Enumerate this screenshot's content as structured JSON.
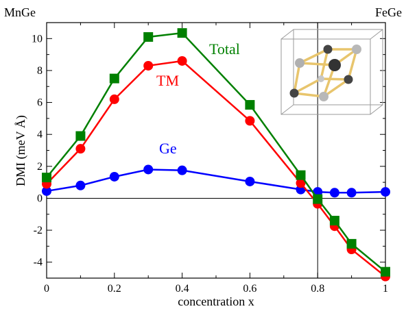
{
  "chart_data": {
    "type": "line",
    "xlabel": "concentration x",
    "ylabel": "DMI (meV Å)",
    "xlim": [
      0,
      1
    ],
    "ylim": [
      -5,
      11
    ],
    "x_ticks": [
      "0",
      "0.2",
      "0.4",
      "0.6",
      "0.8",
      "1"
    ],
    "y_ticks": [
      "-4",
      "-2",
      "0",
      "2",
      "4",
      "6",
      "8",
      "10"
    ],
    "top_left_label": "MnGe",
    "top_right_label": "FeGe",
    "x_marker_line": 0.8,
    "series": [
      {
        "name": "Total",
        "color": "#008000",
        "marker": "square",
        "x": [
          0,
          0.1,
          0.2,
          0.3,
          0.4,
          0.6,
          0.75,
          0.8,
          0.85,
          0.9,
          1.0
        ],
        "values": [
          1.3,
          3.9,
          7.5,
          10.1,
          10.35,
          5.85,
          1.45,
          -0.05,
          -1.4,
          -2.85,
          -4.6
        ]
      },
      {
        "name": "TM",
        "color": "#ff0000",
        "marker": "circle",
        "x": [
          0,
          0.1,
          0.2,
          0.3,
          0.4,
          0.6,
          0.75,
          0.8,
          0.85,
          0.9,
          1.0
        ],
        "values": [
          0.9,
          3.1,
          6.2,
          8.3,
          8.6,
          4.85,
          0.95,
          -0.35,
          -1.75,
          -3.2,
          -4.9
        ]
      },
      {
        "name": "Ge",
        "color": "#0000ff",
        "marker": "circle",
        "x": [
          0,
          0.1,
          0.2,
          0.3,
          0.4,
          0.6,
          0.75,
          0.8,
          0.85,
          0.9,
          1.0
        ],
        "values": [
          0.45,
          0.8,
          1.35,
          1.8,
          1.75,
          1.05,
          0.55,
          0.4,
          0.35,
          0.35,
          0.4
        ]
      }
    ]
  },
  "inset": {
    "description_icon": "crystal-structure-icon"
  }
}
